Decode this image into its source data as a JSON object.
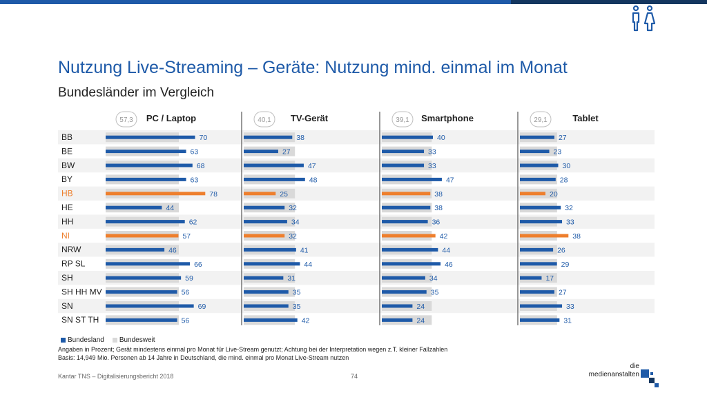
{
  "header": {
    "title": "Nutzung Live-Streaming – Geräte: Nutzung mind. einmal im Monat",
    "subtitle": "Bundesländer im Vergleich",
    "icon": "people-icon"
  },
  "colors": {
    "accent": "#1e5aa8",
    "highlight": "#ee7f2d",
    "bundesweit": "#d9d9d9",
    "stripe": "#f2f2f2"
  },
  "chart_data": {
    "type": "bar",
    "orientation": "horizontal",
    "categories": [
      "BB",
      "BE",
      "BW",
      "BY",
      "HB",
      "HE",
      "HH",
      "NI",
      "NRW",
      "RP SL",
      "SH",
      "SH HH MV",
      "SN",
      "SN ST TH"
    ],
    "highlighted_categories": [
      "HB",
      "NI"
    ],
    "panels": [
      {
        "name": "PC / Laptop",
        "bundesweit": 57.3,
        "bundesweit_label": "57,3",
        "values": [
          70,
          63,
          68,
          63,
          78,
          44,
          62,
          57,
          46,
          66,
          59,
          56,
          69,
          56
        ]
      },
      {
        "name": "TV-Gerät",
        "bundesweit": 40.1,
        "bundesweit_label": "40,1",
        "values": [
          38,
          27,
          47,
          48,
          25,
          32,
          34,
          32,
          41,
          44,
          31,
          35,
          35,
          42
        ]
      },
      {
        "name": "Smartphone",
        "bundesweit": 39.1,
        "bundesweit_label": "39,1",
        "values": [
          40,
          33,
          33,
          47,
          38,
          38,
          36,
          42,
          44,
          46,
          34,
          35,
          24,
          24
        ]
      },
      {
        "name": "Tablet",
        "bundesweit": 29.1,
        "bundesweit_label": "29,1",
        "values": [
          27,
          23,
          30,
          28,
          20,
          32,
          33,
          38,
          26,
          29,
          17,
          27,
          33,
          31
        ]
      }
    ],
    "legend": [
      {
        "label": "Bundesland",
        "color": "#1e5aa8"
      },
      {
        "label": "Bundesweit",
        "color": "#d9d9d9"
      }
    ]
  },
  "notes": {
    "line1": "Angaben in Prozent; Gerät mindestens einmal pro Monat für Live-Stream genutzt; Achtung bei der Interpretation wegen z.T. kleiner Fallzahlen",
    "line2": "Basis: 14,949 Mio. Personen ab 14 Jahre in Deutschland, die mind. einmal pro Monat Live-Stream nutzen"
  },
  "footer": {
    "source": "Kantar TNS – Digitalisierungsbericht 2018",
    "page": "74",
    "brand_line1": "die",
    "brand_line2": "medienanstalten"
  }
}
